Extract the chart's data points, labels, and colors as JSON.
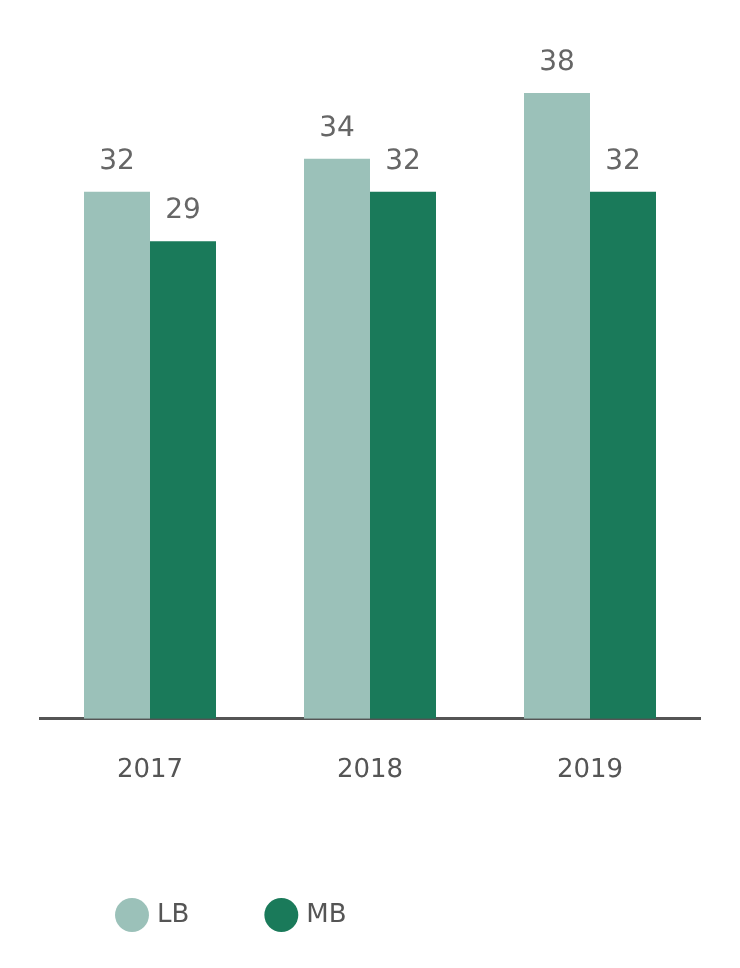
{
  "chart_data": {
    "type": "bar",
    "categories": [
      "2017",
      "2018",
      "2019"
    ],
    "series": [
      {
        "name": "LB",
        "color": "#9bc1b9",
        "values": [
          32,
          34,
          38
        ]
      },
      {
        "name": "MB",
        "color": "#1a7a5a",
        "values": [
          29,
          32,
          32
        ]
      }
    ],
    "data_labels": true,
    "legend": "bottom left",
    "grid": false
  }
}
